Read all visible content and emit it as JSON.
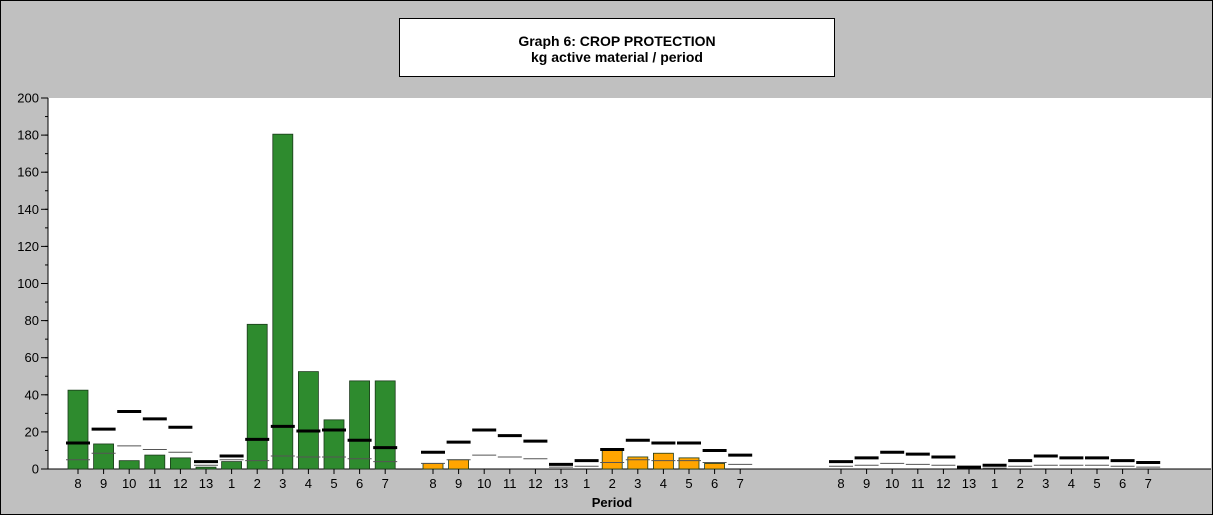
{
  "chart_data": {
    "type": "bar",
    "title": "Graph 6: CROP PROTECTION",
    "subtitle": "kg active material / period",
    "xlabel": "Period",
    "ylabel": "",
    "ylim": [
      0,
      200
    ],
    "yticks": [
      0,
      20,
      40,
      60,
      80,
      100,
      120,
      140,
      160,
      180,
      200
    ],
    "grid": false,
    "groups": [
      {
        "color": "#2e8b2e",
        "categories": [
          "8",
          "9",
          "10",
          "11",
          "12",
          "13",
          "1",
          "2",
          "3",
          "4",
          "5",
          "6",
          "7"
        ],
        "values": [
          42.5,
          13.5,
          4.5,
          7.5,
          6,
          1,
          4,
          78,
          180.5,
          52.5,
          26.5,
          47.5,
          47.5
        ],
        "thick_marker": [
          14,
          21.5,
          31,
          27,
          22.5,
          4,
          7,
          16,
          23,
          20.5,
          21,
          15.5,
          11.5
        ],
        "thin_marker": [
          5,
          8.5,
          12.5,
          10.5,
          9,
          2,
          5,
          4.5,
          7,
          6.5,
          6.5,
          5.5,
          4
        ]
      },
      {
        "color": "#ffa500",
        "categories": [
          "8",
          "9",
          "10",
          "11",
          "12",
          "13",
          "1",
          "2",
          "3",
          "4",
          "5",
          "6",
          "7"
        ],
        "values": [
          3,
          5,
          0,
          0,
          0,
          0,
          0,
          10,
          6.5,
          8.5,
          6,
          3,
          0
        ],
        "thick_marker": [
          9,
          14.5,
          21,
          18,
          15,
          2.5,
          4.5,
          10.5,
          15.5,
          14,
          14,
          10,
          7.5
        ],
        "thin_marker": [
          3,
          5,
          7.5,
          6.5,
          5.5,
          1,
          1.5,
          3.5,
          5,
          4.5,
          4.5,
          3.5,
          2.5
        ]
      },
      {
        "color": "#2e8b2e",
        "categories": [
          "8",
          "9",
          "10",
          "11",
          "12",
          "13",
          "1",
          "2",
          "3",
          "4",
          "5",
          "6",
          "7"
        ],
        "values": [
          0,
          0,
          0,
          0,
          0,
          0,
          0,
          0,
          0,
          0,
          0,
          0,
          0
        ],
        "thick_marker": [
          4,
          6,
          9,
          8,
          6.5,
          1,
          2,
          4.5,
          7,
          6,
          6,
          4.5,
          3.5
        ],
        "thin_marker": [
          1.5,
          2,
          3,
          2.5,
          2,
          0.5,
          0.5,
          1.5,
          2,
          2,
          2,
          1.5,
          1
        ]
      }
    ]
  }
}
